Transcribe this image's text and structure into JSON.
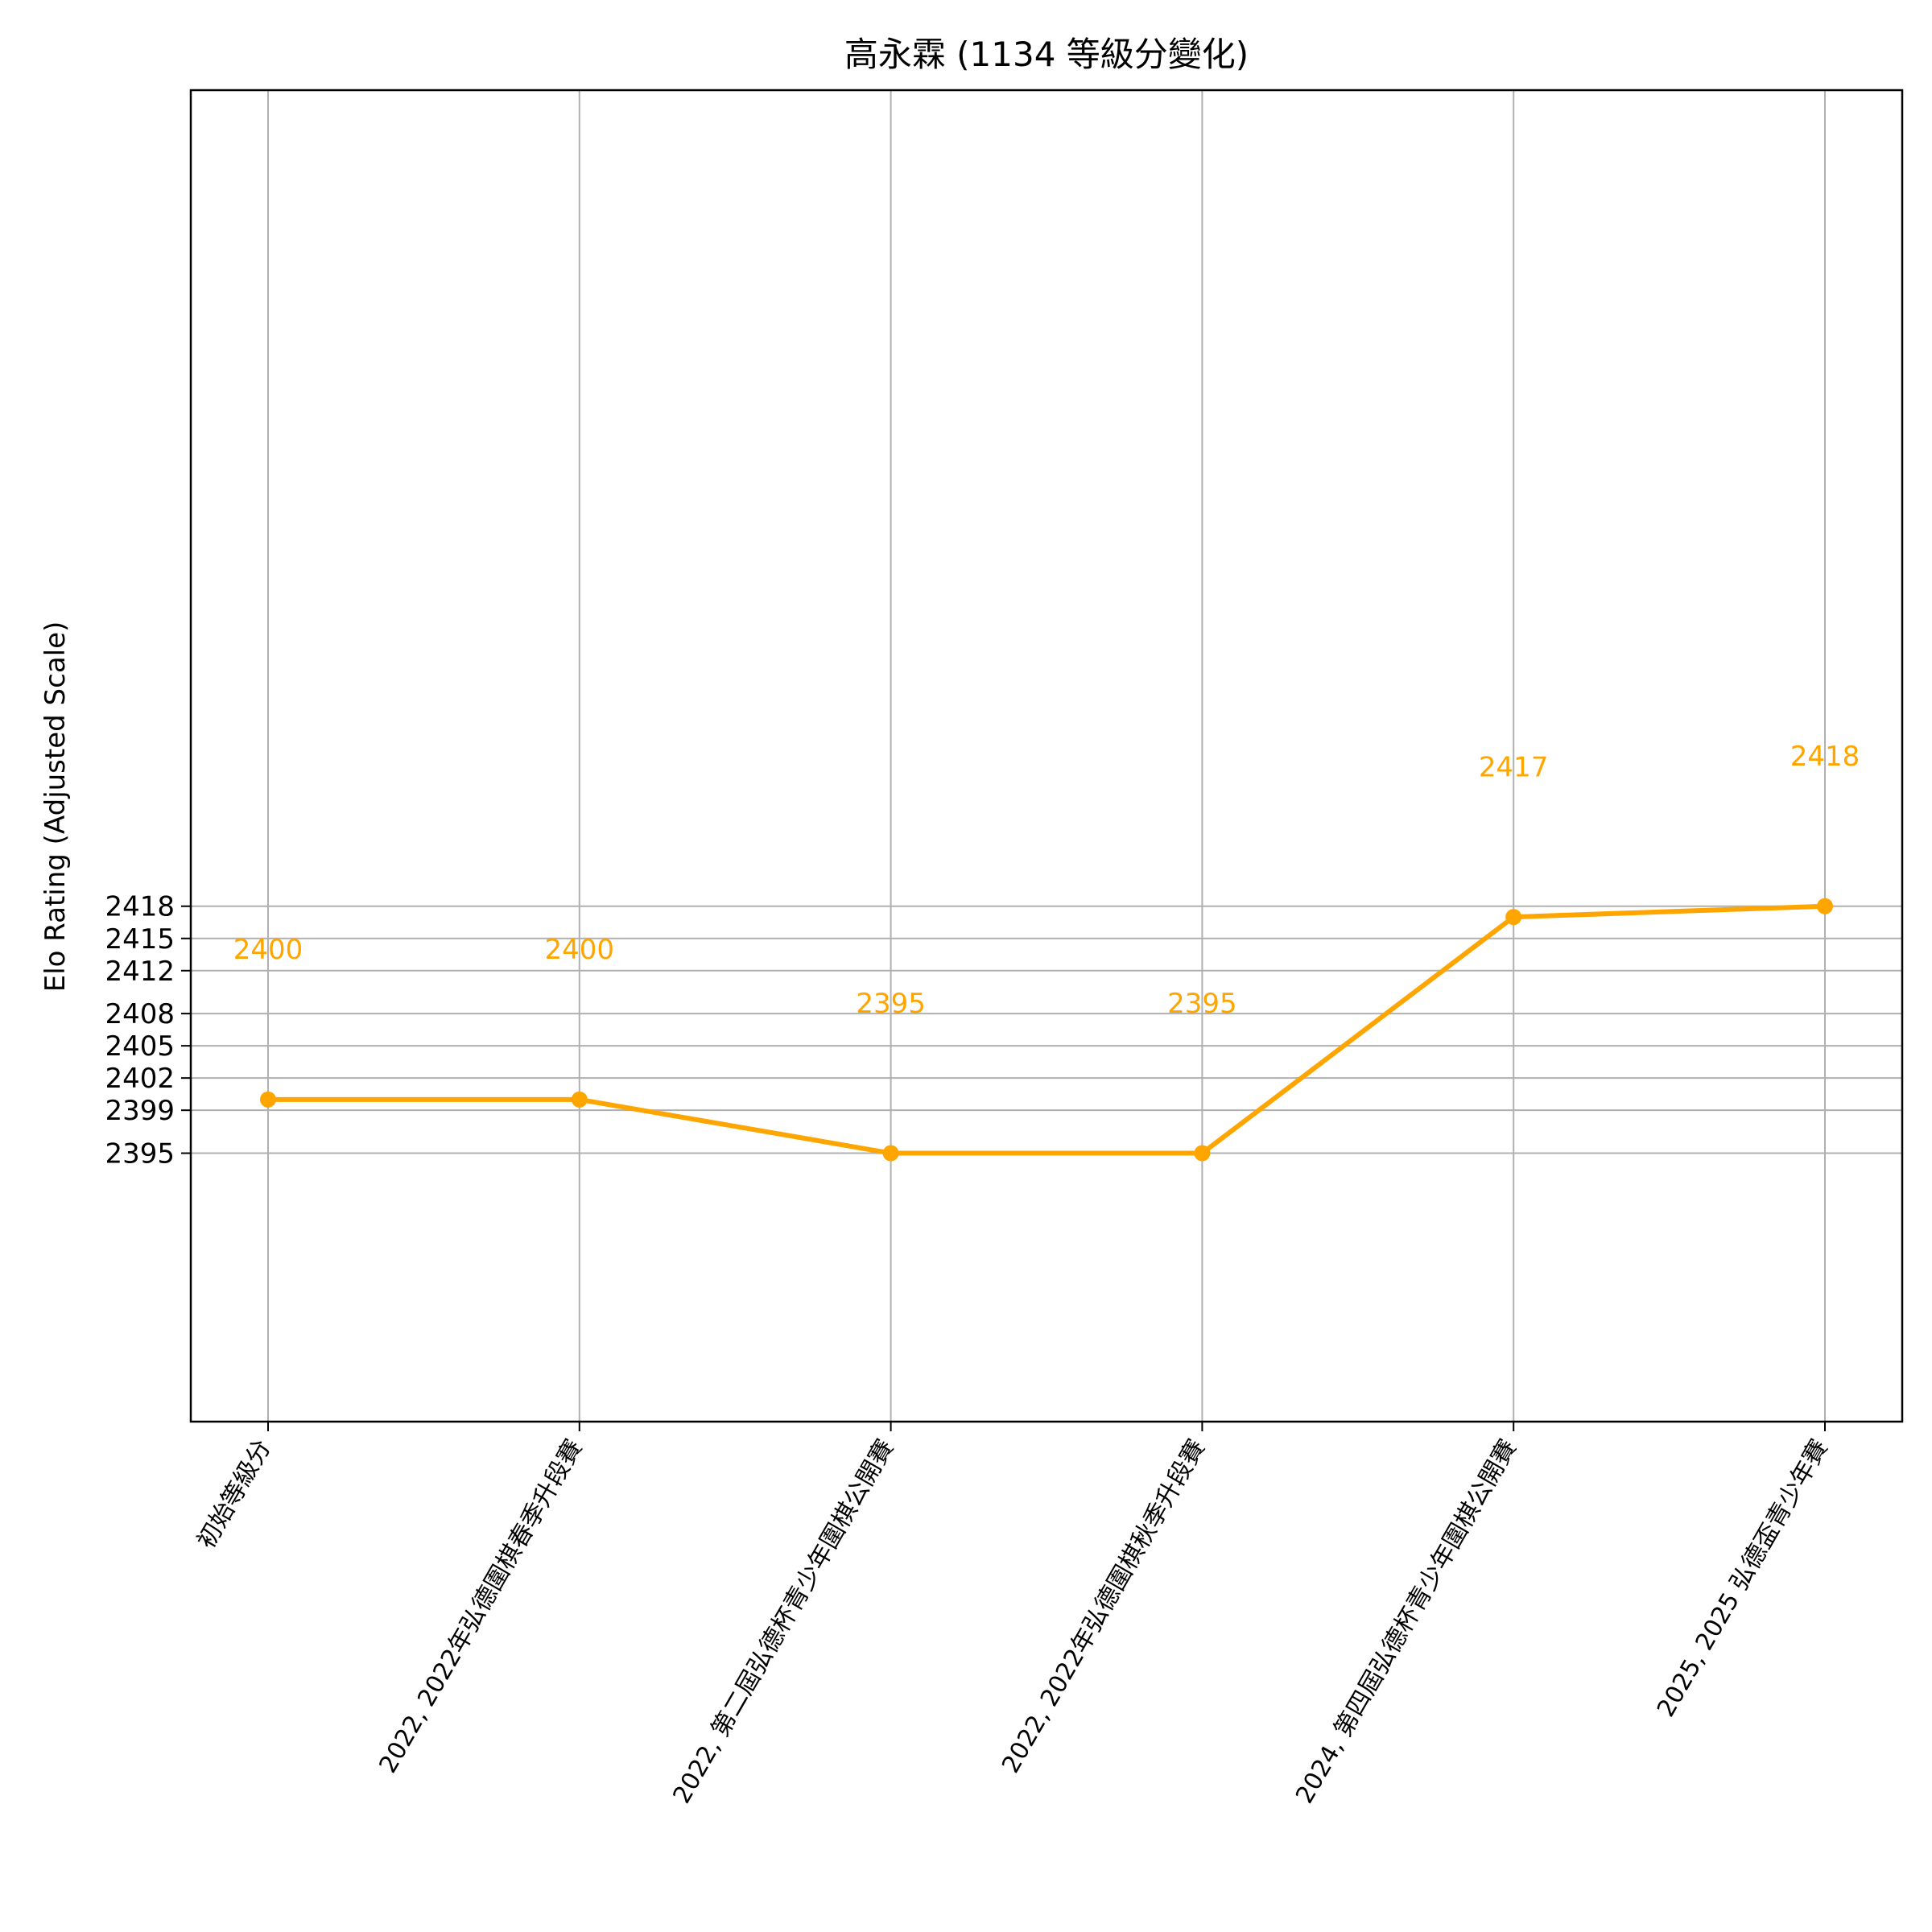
{
  "chart_data": {
    "type": "line",
    "title": "高永霖 (1134 等級分變化)",
    "xlabel": "",
    "ylabel": "Elo Rating (Adjusted Scale)",
    "categories": [
      "初始等級分",
      "2022, 2022年弘德圍棋春季升段賽",
      "2022, 第二屆弘德杯青少年圍棋公開賽",
      "2022, 2022年弘德圍棋秋季升段賽",
      "2024, 第四屆弘德杯青少年圍棋公開賽",
      "2025, 2025 弘德盃青少年賽"
    ],
    "values": [
      2400,
      2400,
      2395,
      2395,
      2417,
      2418
    ],
    "data_labels": [
      "2400",
      "2400",
      "2395",
      "2395",
      "2417",
      "2418"
    ],
    "yticks": [
      2395,
      2399,
      2402,
      2405,
      2408,
      2412,
      2415,
      2418
    ],
    "ylim": [
      2370,
      2494
    ],
    "grid": true,
    "color": "#ffa500",
    "label_offset": 14
  }
}
